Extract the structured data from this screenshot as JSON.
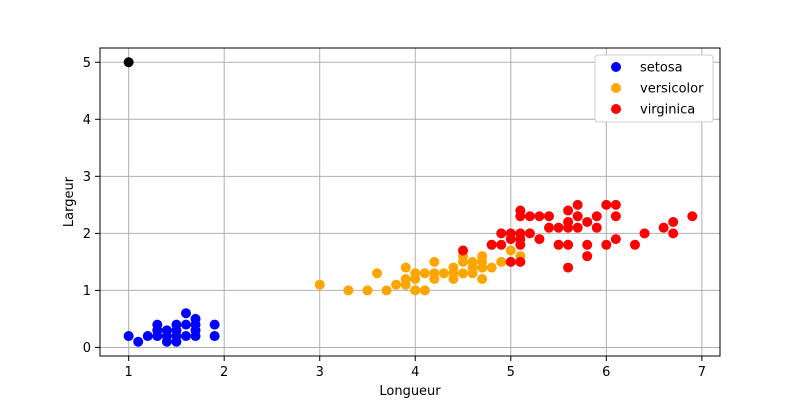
{
  "chart_data": {
    "type": "scatter",
    "title": "",
    "xlabel": "Longueur",
    "ylabel": "Largeur",
    "xlim": [
      0.7,
      7.19
    ],
    "ylim": [
      -0.15,
      5.25
    ],
    "xticks": [
      1,
      2,
      3,
      4,
      5,
      6,
      7
    ],
    "yticks": [
      0,
      1,
      2,
      3,
      4,
      5
    ],
    "grid": true,
    "legend": {
      "position": "upper-right"
    },
    "series": [
      {
        "name": "setosa",
        "color": "#0000ff",
        "points": [
          [
            1.0,
            0.2
          ],
          [
            1.1,
            0.1
          ],
          [
            1.2,
            0.2
          ],
          [
            1.3,
            0.2
          ],
          [
            1.3,
            0.3
          ],
          [
            1.3,
            0.4
          ],
          [
            1.4,
            0.1
          ],
          [
            1.4,
            0.2
          ],
          [
            1.4,
            0.3
          ],
          [
            1.5,
            0.1
          ],
          [
            1.5,
            0.2
          ],
          [
            1.5,
            0.3
          ],
          [
            1.5,
            0.4
          ],
          [
            1.6,
            0.2
          ],
          [
            1.6,
            0.4
          ],
          [
            1.6,
            0.6
          ],
          [
            1.7,
            0.2
          ],
          [
            1.7,
            0.3
          ],
          [
            1.7,
            0.4
          ],
          [
            1.7,
            0.5
          ],
          [
            1.9,
            0.2
          ],
          [
            1.9,
            0.4
          ]
        ]
      },
      {
        "name": "versicolor",
        "color": "#ffa500",
        "points": [
          [
            3.0,
            1.1
          ],
          [
            3.3,
            1.0
          ],
          [
            3.5,
            1.0
          ],
          [
            3.6,
            1.3
          ],
          [
            3.7,
            1.0
          ],
          [
            3.8,
            1.1
          ],
          [
            3.9,
            1.1
          ],
          [
            3.9,
            1.2
          ],
          [
            3.9,
            1.4
          ],
          [
            4.0,
            1.0
          ],
          [
            4.0,
            1.2
          ],
          [
            4.0,
            1.3
          ],
          [
            4.1,
            1.0
          ],
          [
            4.1,
            1.3
          ],
          [
            4.2,
            1.2
          ],
          [
            4.2,
            1.3
          ],
          [
            4.2,
            1.5
          ],
          [
            4.3,
            1.3
          ],
          [
            4.4,
            1.2
          ],
          [
            4.4,
            1.3
          ],
          [
            4.4,
            1.4
          ],
          [
            4.5,
            1.3
          ],
          [
            4.5,
            1.5
          ],
          [
            4.5,
            1.6
          ],
          [
            4.6,
            1.3
          ],
          [
            4.6,
            1.4
          ],
          [
            4.6,
            1.5
          ],
          [
            4.7,
            1.2
          ],
          [
            4.7,
            1.4
          ],
          [
            4.7,
            1.5
          ],
          [
            4.7,
            1.6
          ],
          [
            4.8,
            1.4
          ],
          [
            4.8,
            1.8
          ],
          [
            4.9,
            1.5
          ],
          [
            5.0,
            1.7
          ],
          [
            5.1,
            1.6
          ]
        ]
      },
      {
        "name": "virginica",
        "color": "#ff0000",
        "points": [
          [
            4.5,
            1.7
          ],
          [
            4.8,
            1.8
          ],
          [
            4.9,
            1.8
          ],
          [
            4.9,
            2.0
          ],
          [
            5.0,
            1.5
          ],
          [
            5.0,
            1.9
          ],
          [
            5.0,
            2.0
          ],
          [
            5.1,
            1.5
          ],
          [
            5.1,
            1.8
          ],
          [
            5.1,
            1.9
          ],
          [
            5.1,
            2.0
          ],
          [
            5.1,
            2.3
          ],
          [
            5.1,
            2.4
          ],
          [
            5.2,
            2.0
          ],
          [
            5.2,
            2.3
          ],
          [
            5.3,
            1.9
          ],
          [
            5.3,
            2.3
          ],
          [
            5.4,
            2.1
          ],
          [
            5.4,
            2.3
          ],
          [
            5.5,
            1.8
          ],
          [
            5.5,
            2.1
          ],
          [
            5.6,
            1.4
          ],
          [
            5.6,
            1.8
          ],
          [
            5.6,
            2.1
          ],
          [
            5.6,
            2.2
          ],
          [
            5.6,
            2.4
          ],
          [
            5.7,
            2.1
          ],
          [
            5.7,
            2.3
          ],
          [
            5.7,
            2.5
          ],
          [
            5.8,
            1.6
          ],
          [
            5.8,
            1.8
          ],
          [
            5.8,
            2.2
          ],
          [
            5.9,
            2.1
          ],
          [
            5.9,
            2.3
          ],
          [
            6.0,
            1.8
          ],
          [
            6.0,
            2.5
          ],
          [
            6.1,
            1.9
          ],
          [
            6.1,
            2.3
          ],
          [
            6.1,
            2.5
          ],
          [
            6.3,
            1.8
          ],
          [
            6.4,
            2.0
          ],
          [
            6.6,
            2.1
          ],
          [
            6.7,
            2.0
          ],
          [
            6.7,
            2.2
          ],
          [
            6.9,
            2.3
          ]
        ]
      },
      {
        "name": "",
        "color": "#000000",
        "points": [
          [
            1.0,
            5.0
          ]
        ]
      }
    ]
  }
}
